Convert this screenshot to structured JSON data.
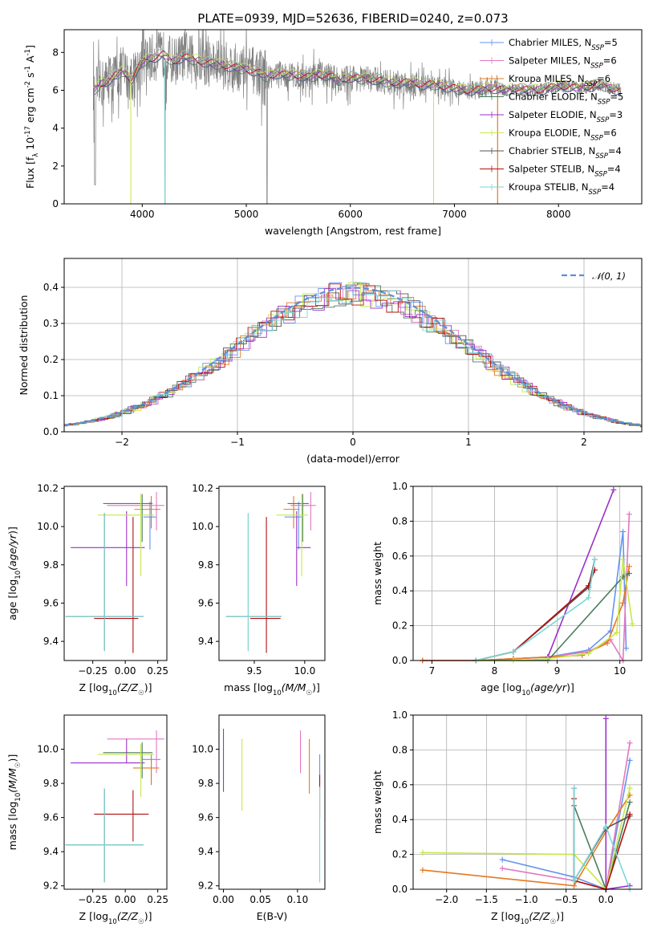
{
  "figure": {
    "title": "PLATE=0939, MJD=52636, FIBERID=0240, z=0.073",
    "colors": {
      "Chabrier MILES": "#6495ed",
      "Salpeter MILES": "#e377c2",
      "Kroupa MILES": "#e6781e",
      "Chabrier ELODIE": "#4a7d5c",
      "Salpeter ELODIE": "#9b30c9",
      "Kroupa ELODIE": "#c5e84a",
      "Chabrier STELIB": "#555555",
      "Salpeter STELIB": "#b21010",
      "Kroupa STELIB": "#7fd6d6",
      "normal": "#5b8fd6"
    }
  },
  "chart_data": [
    {
      "id": "spectrum",
      "type": "line",
      "title": "PLATE=0939, MJD=52636, FIBERID=0240, z=0.073",
      "xlabel": "wavelength [Angstrom, rest frame]",
      "ylabel": "Flux [f_λ 10^-17 erg cm^-2 s^-1 A^-1]",
      "xlim": [
        3250,
        8800
      ],
      "ylim": [
        0,
        9.2
      ],
      "xticks": [
        "4000",
        "5000",
        "6000",
        "7000",
        "8000"
      ],
      "yticks": [
        "0",
        "2",
        "4",
        "6",
        "8"
      ],
      "legend_position": "top-right",
      "series": [
        {
          "name": "Chabrier MILES",
          "nssp": "5"
        },
        {
          "name": "Salpeter MILES",
          "nssp": "6"
        },
        {
          "name": "Kroupa MILES",
          "nssp": "6"
        },
        {
          "name": "Chabrier ELODIE",
          "nssp": "5"
        },
        {
          "name": "Salpeter ELODIE",
          "nssp": "3"
        },
        {
          "name": "Kroupa ELODIE",
          "nssp": "6"
        },
        {
          "name": "Chabrier STELIB",
          "nssp": "4"
        },
        {
          "name": "Salpeter STELIB",
          "nssp": "4"
        },
        {
          "name": "Kroupa STELIB",
          "nssp": "4"
        }
      ],
      "continuum": {
        "x": [
          3530,
          3600,
          3700,
          3800,
          3900,
          4000,
          4100,
          4200,
          4300,
          4400,
          4500,
          4600,
          4700,
          4800,
          4900,
          5000,
          5100,
          5200,
          5300,
          5400,
          5500,
          5600,
          5700,
          5800,
          5900,
          6000,
          6100,
          6200,
          6300,
          6400,
          6500,
          6600,
          6700,
          6800,
          6900,
          7000,
          7100,
          7200,
          7300,
          7400,
          7500,
          7600,
          7700,
          7800,
          7900,
          8000,
          8100,
          8200,
          8300,
          8400,
          8500,
          8600
        ],
        "y": [
          6.0,
          6.3,
          6.6,
          7.0,
          6.6,
          7.5,
          7.7,
          7.9,
          7.5,
          7.8,
          7.6,
          7.5,
          7.4,
          7.3,
          7.2,
          7.1,
          7.0,
          6.7,
          6.9,
          6.8,
          6.8,
          6.7,
          6.8,
          6.8,
          6.5,
          6.7,
          6.6,
          6.6,
          6.5,
          6.4,
          6.4,
          6.4,
          6.3,
          6.3,
          6.2,
          6.1,
          6.0,
          6.0,
          6.1,
          6.1,
          6.0,
          6.1,
          6.0,
          6.0,
          6.1,
          6.2,
          6.2,
          6.1,
          6.2,
          6.3,
          6.1,
          6.0
        ]
      }
    },
    {
      "id": "residuals",
      "type": "line",
      "xlabel": "(data-model)/error",
      "ylabel": "Normed distribution",
      "xlim": [
        -2.5,
        2.5
      ],
      "ylim": [
        0,
        0.48
      ],
      "xticks": [
        "−2",
        "−1",
        "0",
        "1",
        "2"
      ],
      "yticks": [
        "0.0",
        "0.1",
        "0.2",
        "0.3",
        "0.4"
      ],
      "grid": true,
      "legend_position": "top-right",
      "legend": "𝒩(0, 1)"
    },
    {
      "id": "age-vs-Z",
      "type": "scatter",
      "xlabel": "Z [log10(Z/Z☉)]",
      "ylabel": "age  [log10(age/yr)]",
      "xlim": [
        -0.47,
        0.32
      ],
      "ylim": [
        9.3,
        10.21
      ],
      "xticks": [
        "−0.25",
        "0.00",
        "0.25"
      ],
      "yticks": [
        "9.4",
        "9.6",
        "9.8",
        "10.0",
        "10.2"
      ],
      "points": [
        {
          "series": "Chabrier MILES",
          "x": 0.19,
          "y": 10.05,
          "xerr": [
            0.05,
            0.05
          ],
          "yerr": [
            0.17,
            0.08
          ]
        },
        {
          "series": "Salpeter MILES",
          "x": 0.24,
          "y": 10.11,
          "xerr": [
            0.38,
            0.06
          ],
          "yerr": [
            0.13,
            0.07
          ]
        },
        {
          "series": "Kroupa MILES",
          "x": 0.2,
          "y": 10.09,
          "xerr": [
            0.13,
            0.07
          ],
          "yerr": [
            0.1,
            0.07
          ]
        },
        {
          "series": "Chabrier ELODIE",
          "x": 0.13,
          "y": 10.12,
          "xerr": [
            0.3,
            0.08
          ],
          "yerr": [
            0.2,
            0.05
          ]
        },
        {
          "series": "Salpeter ELODIE",
          "x": 0.01,
          "y": 9.89,
          "xerr": [
            0.43,
            0.14
          ],
          "yerr": [
            0.2,
            0.19
          ]
        },
        {
          "series": "Kroupa ELODIE",
          "x": 0.12,
          "y": 10.06,
          "xerr": [
            0.33,
            0.1
          ],
          "yerr": [
            0.32,
            0.11
          ]
        },
        {
          "series": "Chabrier STELIB",
          "x": -0.16,
          "y": 9.53,
          "xerr": [
            0.3,
            0.3
          ],
          "yerr": [
            0.18,
            0.54
          ]
        },
        {
          "series": "Salpeter STELIB",
          "x": 0.06,
          "y": 9.52,
          "xerr": [
            0.3,
            0.04
          ],
          "yerr": [
            0.18,
            0.53
          ]
        },
        {
          "series": "Kroupa STELIB",
          "x": -0.16,
          "y": 9.53,
          "xerr": [
            0.3,
            0.3
          ],
          "yerr": [
            0.18,
            0.54
          ]
        }
      ]
    },
    {
      "id": "age-vs-mass",
      "type": "scatter",
      "xlabel": "mass [log10(M/M☉)]",
      "ylabel": "",
      "xlim": [
        9.15,
        10.2
      ],
      "ylim": [
        9.3,
        10.21
      ],
      "xticks": [
        "9.5",
        "10.0"
      ],
      "yticks": [
        "9.4",
        "9.6",
        "9.8",
        "10.0",
        "10.2"
      ],
      "points": [
        {
          "series": "Chabrier MILES",
          "x": 9.94,
          "y": 10.05,
          "xerr": [
            0.14,
            0.03
          ],
          "yerr": [
            0.17,
            0.08
          ]
        },
        {
          "series": "Salpeter MILES",
          "x": 10.06,
          "y": 10.11,
          "xerr": [
            0.2,
            0.05
          ],
          "yerr": [
            0.13,
            0.07
          ]
        },
        {
          "series": "Kroupa MILES",
          "x": 9.89,
          "y": 10.09,
          "xerr": [
            0.1,
            0.06
          ],
          "yerr": [
            0.1,
            0.07
          ]
        },
        {
          "series": "Chabrier ELODIE",
          "x": 9.98,
          "y": 10.12,
          "xerr": [
            0.15,
            0.06
          ],
          "yerr": [
            0.2,
            0.05
          ]
        },
        {
          "series": "Salpeter ELODIE",
          "x": 9.92,
          "y": 9.89,
          "xerr": [
            0.0,
            0.14
          ],
          "yerr": [
            0.2,
            0.19
          ]
        },
        {
          "series": "Kroupa ELODIE",
          "x": 9.97,
          "y": 10.06,
          "xerr": [
            0.25,
            0.06
          ],
          "yerr": [
            0.32,
            0.11
          ]
        },
        {
          "series": "Chabrier STELIB",
          "x": 9.44,
          "y": 9.53,
          "xerr": [
            0.22,
            0.33
          ],
          "yerr": [
            0.18,
            0.54
          ]
        },
        {
          "series": "Salpeter STELIB",
          "x": 9.62,
          "y": 9.52,
          "xerr": [
            0.16,
            0.14
          ],
          "yerr": [
            0.18,
            0.53
          ]
        },
        {
          "series": "Kroupa STELIB",
          "x": 9.44,
          "y": 9.53,
          "xerr": [
            0.22,
            0.33
          ],
          "yerr": [
            0.18,
            0.54
          ]
        }
      ]
    },
    {
      "id": "weight-vs-age",
      "type": "line",
      "xlabel": "age  [log10(age/yr)]",
      "ylabel": "mass weight",
      "xlim": [
        6.7,
        10.35
      ],
      "ylim": [
        0,
        1
      ],
      "xticks": [
        "7",
        "8",
        "9",
        "10"
      ],
      "yticks": [
        "0.0",
        "0.2",
        "0.4",
        "0.6",
        "0.8",
        "1.0"
      ],
      "grid": true,
      "series": [
        {
          "series": "Chabrier MILES",
          "x": [
            6.85,
            7.7,
            8.3,
            8.85,
            9.5,
            9.85,
            10.05,
            10.1
          ],
          "y": [
            0.0,
            0.0,
            0.01,
            0.02,
            0.06,
            0.17,
            0.74,
            0.07
          ]
        },
        {
          "series": "Salpeter MILES",
          "x": [
            6.85,
            7.7,
            8.3,
            8.85,
            9.5,
            9.85,
            10.05,
            10.15
          ],
          "y": [
            0.0,
            0.0,
            0.01,
            0.02,
            0.05,
            0.12,
            0.0,
            0.84
          ]
        },
        {
          "series": "Kroupa MILES",
          "x": [
            6.85,
            7.7,
            8.3,
            8.85,
            9.4,
            9.8,
            10.05,
            10.15
          ],
          "y": [
            0.0,
            0.0,
            0.01,
            0.02,
            0.03,
            0.1,
            0.33,
            0.54
          ]
        },
        {
          "series": "Chabrier ELODIE",
          "x": [
            7.7,
            8.85,
            10.05,
            10.15
          ],
          "y": [
            0.0,
            0.0,
            0.48,
            0.5
          ]
        },
        {
          "series": "Salpeter ELODIE",
          "x": [
            8.85,
            9.9
          ],
          "y": [
            0.02,
            0.98
          ]
        },
        {
          "series": "Kroupa ELODIE",
          "x": [
            7.7,
            8.3,
            8.85,
            9.5,
            9.95,
            10.05,
            10.2
          ],
          "y": [
            0.0,
            0.0,
            0.01,
            0.04,
            0.16,
            0.58,
            0.21
          ]
        },
        {
          "series": "Chabrier STELIB",
          "x": [
            7.7,
            8.3,
            9.5,
            9.6
          ],
          "y": [
            0.0,
            0.05,
            0.42,
            0.58
          ]
        },
        {
          "series": "Salpeter STELIB",
          "x": [
            7.7,
            8.3,
            9.5,
            9.6
          ],
          "y": [
            0.0,
            0.05,
            0.43,
            0.52
          ]
        },
        {
          "series": "Kroupa STELIB",
          "x": [
            7.7,
            8.3,
            9.5,
            9.6
          ],
          "y": [
            0.0,
            0.05,
            0.36,
            0.58
          ]
        }
      ]
    },
    {
      "id": "mass-vs-Z",
      "type": "scatter",
      "xlabel": "Z [log10(Z/Z☉)]",
      "ylabel": "mass [log10(M/M☉)]",
      "xlim": [
        -0.47,
        0.32
      ],
      "ylim": [
        9.18,
        10.2
      ],
      "xticks": [
        "−0.25",
        "0.00",
        "0.25"
      ],
      "yticks": [
        "9.2",
        "9.4",
        "9.6",
        "9.8",
        "10.0"
      ],
      "points": [
        {
          "series": "Chabrier MILES",
          "x": 0.2,
          "y": 9.94,
          "xerr": [
            0.07,
            0.07
          ],
          "yerr": [
            0.14,
            0.03
          ]
        },
        {
          "series": "Salpeter MILES",
          "x": 0.24,
          "y": 10.06,
          "xerr": [
            0.38,
            0.06
          ],
          "yerr": [
            0.2,
            0.05
          ]
        },
        {
          "series": "Kroupa MILES",
          "x": 0.2,
          "y": 9.89,
          "xerr": [
            0.14,
            0.06
          ],
          "yerr": [
            0.1,
            0.06
          ]
        },
        {
          "series": "Chabrier ELODIE",
          "x": 0.13,
          "y": 9.98,
          "xerr": [
            0.3,
            0.08
          ],
          "yerr": [
            0.15,
            0.06
          ]
        },
        {
          "series": "Salpeter ELODIE",
          "x": 0.01,
          "y": 9.92,
          "xerr": [
            0.43,
            0.14
          ],
          "yerr": [
            0.0,
            0.14
          ]
        },
        {
          "series": "Kroupa ELODIE",
          "x": 0.12,
          "y": 9.97,
          "xerr": [
            0.33,
            0.1
          ],
          "yerr": [
            0.25,
            0.06
          ]
        },
        {
          "series": "Chabrier STELIB",
          "x": -0.16,
          "y": 9.44,
          "xerr": [
            0.3,
            0.3
          ],
          "yerr": [
            0.22,
            0.33
          ]
        },
        {
          "series": "Salpeter STELIB",
          "x": 0.06,
          "y": 9.62,
          "xerr": [
            0.3,
            0.12
          ],
          "yerr": [
            0.16,
            0.14
          ]
        },
        {
          "series": "Kroupa STELIB",
          "x": -0.16,
          "y": 9.44,
          "xerr": [
            0.3,
            0.3
          ],
          "yerr": [
            0.22,
            0.33
          ]
        }
      ]
    },
    {
      "id": "mass-vs-ebv",
      "type": "scatter",
      "xlabel": "E(B-V)",
      "ylabel": "",
      "xlim": [
        -0.006,
        0.137
      ],
      "ylim": [
        9.18,
        10.2
      ],
      "xticks": [
        "0.00",
        "0.05",
        "0.10"
      ],
      "yticks": [
        "9.2",
        "9.4",
        "9.6",
        "9.8",
        "10.0"
      ],
      "points": [
        {
          "series": "Chabrier MILES",
          "x": 0.13,
          "y": 9.94,
          "xerr": [
            0,
            0
          ],
          "yerr": [
            0.14,
            0.03
          ]
        },
        {
          "series": "Salpeter MILES",
          "x": 0.104,
          "y": 10.06,
          "xerr": [
            0,
            0
          ],
          "yerr": [
            0.2,
            0.05
          ]
        },
        {
          "series": "Kroupa MILES",
          "x": 0.116,
          "y": 9.89,
          "xerr": [
            0,
            0
          ],
          "yerr": [
            0.15,
            0.17
          ]
        },
        {
          "series": "Salpeter ELODIE",
          "x": 0.0,
          "y": 9.92,
          "xerr": [
            0,
            0
          ],
          "yerr": [
            0.17,
            0.2
          ]
        },
        {
          "series": "Kroupa ELODIE",
          "x": 0.025,
          "y": 9.97,
          "xerr": [
            0,
            0
          ],
          "yerr": [
            0.33,
            0.09
          ]
        },
        {
          "series": "Salpeter STELIB",
          "x": 0.13,
          "y": 9.7,
          "xerr": [
            0,
            0
          ],
          "yerr": [
            0.1,
            0.15
          ]
        },
        {
          "series": "Kroupa STELIB",
          "x": 0.13,
          "y": 9.5,
          "xerr": [
            0,
            0
          ],
          "yerr": [
            0.28,
            0.28
          ]
        }
      ]
    },
    {
      "id": "weight-vs-Z",
      "type": "line",
      "xlabel": "Z [log10(Z/Z☉)]",
      "ylabel": "mass weight",
      "xlim": [
        -2.42,
        0.45
      ],
      "ylim": [
        0,
        1
      ],
      "xticks": [
        "−2.0",
        "−1.5",
        "−1.0",
        "−0.5",
        "0.0"
      ],
      "yticks": [
        "0.0",
        "0.2",
        "0.4",
        "0.6",
        "0.8",
        "1.0"
      ],
      "grid": true,
      "series": [
        {
          "series": "Chabrier MILES",
          "x": [
            -1.3,
            -0.4,
            0.0,
            0.3
          ],
          "y": [
            0.17,
            0.07,
            0.0,
            0.74
          ]
        },
        {
          "series": "Salpeter MILES",
          "x": [
            -1.3,
            -0.4,
            0.0,
            0.3
          ],
          "y": [
            0.12,
            0.05,
            0.0,
            0.84
          ]
        },
        {
          "series": "Kroupa MILES",
          "x": [
            -2.3,
            -0.4,
            0.0,
            0.3
          ],
          "y": [
            0.11,
            0.02,
            0.33,
            0.54
          ]
        },
        {
          "series": "Chabrier ELODIE",
          "x": [
            -0.4,
            0.0,
            0.3
          ],
          "y": [
            0.48,
            0.0,
            0.5
          ]
        },
        {
          "series": "Salpeter ELODIE",
          "x": [
            0.0,
            0.0,
            0.3
          ],
          "y": [
            0.98,
            0.0,
            0.02
          ]
        },
        {
          "series": "Kroupa ELODIE",
          "x": [
            -2.3,
            -0.4,
            0.0,
            0.3
          ],
          "y": [
            0.21,
            0.2,
            0.0,
            0.58
          ]
        },
        {
          "series": "Chabrier STELIB",
          "x": [
            -0.4,
            -0.4,
            0.0,
            0.3
          ],
          "y": [
            0.58,
            0.05,
            0.35,
            0.42
          ]
        },
        {
          "series": "Salpeter STELIB",
          "x": [
            -0.4,
            -0.4,
            0.0,
            0.3
          ],
          "y": [
            0.52,
            0.05,
            0.0,
            0.43
          ]
        },
        {
          "series": "Kroupa STELIB",
          "x": [
            -0.4,
            -0.4,
            0.0,
            0.3
          ],
          "y": [
            0.58,
            0.05,
            0.36,
            0.0
          ]
        }
      ]
    }
  ]
}
